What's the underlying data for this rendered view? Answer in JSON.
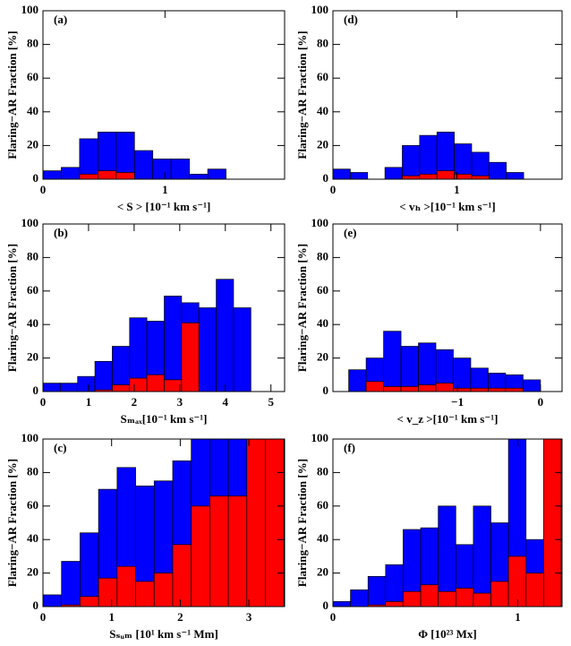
{
  "chart_data": [
    {
      "type": "histogram",
      "title": "(a)",
      "xlabel": "< S > [10⁻¹ km s⁻¹]",
      "ylabel": "Flaring−AR Fraction [%]",
      "bins": [
        0,
        0.15,
        0.3,
        0.45,
        0.6,
        0.75,
        0.9,
        1.05,
        1.2,
        1.35,
        1.5
      ],
      "series": [
        {
          "color": "#0000ff",
          "values": [
            5,
            7,
            24,
            28,
            28,
            17,
            12,
            12,
            3,
            6
          ]
        },
        {
          "color": "#ff0000",
          "values": [
            0,
            0,
            3,
            5,
            4,
            0,
            0,
            0,
            0,
            0
          ]
        }
      ],
      "xlim": [
        0,
        1.98
      ],
      "xticks": [
        0,
        1
      ],
      "ylim": [
        0,
        100
      ],
      "yticks": [
        0,
        20,
        40,
        60,
        80,
        100
      ]
    },
    {
      "type": "histogram",
      "title": "(b)",
      "xlabel": "Sₘₐₓ[10⁻¹ km s⁻¹]",
      "ylabel": "Flaring−AR Fraction [%]",
      "bins": [
        0,
        0.38,
        0.76,
        1.14,
        1.52,
        1.9,
        2.28,
        2.66,
        3.04,
        3.42,
        3.8,
        4.18,
        4.56
      ],
      "series": [
        {
          "color": "#0000ff",
          "values": [
            5,
            5,
            9,
            18,
            27,
            44,
            42,
            57,
            53,
            50,
            67,
            50
          ]
        },
        {
          "color": "#ff0000",
          "values": [
            0,
            0,
            0,
            1,
            4,
            8,
            10,
            7,
            41,
            0,
            0,
            0
          ]
        }
      ],
      "xlim": [
        0,
        5.3
      ],
      "xticks": [
        0,
        1,
        2,
        3,
        4,
        5
      ],
      "ylim": [
        0,
        100
      ],
      "yticks": [
        0,
        20,
        40,
        60,
        80,
        100
      ]
    },
    {
      "type": "histogram",
      "title": "(c)",
      "xlabel": "Sₛᵤₘ [10¹ km s⁻¹ Mm]",
      "ylabel": "Flaring−AR Fraction [%]",
      "bins": [
        0,
        0.27,
        0.54,
        0.81,
        1.08,
        1.35,
        1.62,
        1.89,
        2.16,
        2.43,
        2.7,
        2.97,
        3.24,
        3.51
      ],
      "series": [
        {
          "color": "#0000ff",
          "values": [
            7,
            27,
            44,
            70,
            83,
            72,
            75,
            87,
            100,
            100,
            100,
            100,
            100
          ]
        },
        {
          "color": "#ff0000",
          "values": [
            0,
            1,
            6,
            17,
            24,
            15,
            20,
            37,
            60,
            66,
            66,
            100,
            100
          ]
        }
      ],
      "xlim": [
        0,
        3.52
      ],
      "xticks": [
        0,
        1,
        2,
        3
      ],
      "ylim": [
        0,
        100
      ],
      "yticks": [
        0,
        20,
        40,
        60,
        80,
        100
      ]
    },
    {
      "type": "histogram",
      "title": "(d)",
      "xlabel": "< vₕ >[10⁻¹ km s⁻¹]",
      "ylabel": "Flaring−AR Fraction [%]",
      "bins": [
        0,
        0.14,
        0.28,
        0.42,
        0.56,
        0.7,
        0.84,
        0.98,
        1.12,
        1.26,
        1.4,
        1.54
      ],
      "series": [
        {
          "color": "#0000ff",
          "values": [
            6,
            4,
            0,
            7,
            20,
            26,
            28,
            21,
            16,
            10,
            4
          ]
        },
        {
          "color": "#ff0000",
          "values": [
            0,
            0,
            0,
            0,
            2,
            3,
            5,
            3,
            2,
            0,
            0
          ]
        }
      ],
      "xlim": [
        0,
        1.85
      ],
      "xticks": [
        0,
        1
      ],
      "ylim": [
        0,
        100
      ],
      "yticks": [
        0,
        20,
        40,
        60,
        80,
        100
      ]
    },
    {
      "type": "histogram",
      "title": "(e)",
      "xlabel": "< v_z >[10⁻¹ km s⁻¹]",
      "ylabel": "Flaring−AR Fraction [%]",
      "bins": [
        -2.31,
        -2.1,
        -1.89,
        -1.68,
        -1.47,
        -1.26,
        -1.05,
        -0.84,
        -0.63,
        -0.42,
        -0.21,
        0
      ],
      "series": [
        {
          "color": "#0000ff",
          "values": [
            13,
            20,
            36,
            27,
            29,
            25,
            20,
            14,
            11,
            10,
            7
          ]
        },
        {
          "color": "#ff0000",
          "values": [
            0,
            6,
            3,
            3,
            4,
            5,
            2,
            2,
            2,
            2,
            0
          ]
        }
      ],
      "xlim": [
        -2.5,
        0.26
      ],
      "xticks": [
        {
          "value": -1,
          "label": "−1"
        },
        0
      ],
      "ylim": [
        0,
        100
      ],
      "yticks": [
        0,
        20,
        40,
        60,
        80,
        100
      ]
    },
    {
      "type": "histogram",
      "title": "(f)",
      "xlabel": "Φ [10²³ Mx]",
      "ylabel": "Flaring−AR Fraction [%]",
      "bins": [
        0,
        0.095,
        0.19,
        0.285,
        0.38,
        0.475,
        0.57,
        0.665,
        0.76,
        0.855,
        0.95,
        1.045,
        1.14,
        1.235
      ],
      "series": [
        {
          "color": "#0000ff",
          "values": [
            3,
            10,
            18,
            25,
            46,
            47,
            60,
            37,
            60,
            50,
            100,
            40,
            100
          ]
        },
        {
          "color": "#ff0000",
          "values": [
            0,
            0,
            1,
            3,
            9,
            13,
            9,
            11,
            8,
            15,
            30,
            20,
            100
          ]
        }
      ],
      "xlim": [
        0,
        1.24
      ],
      "xticks": [
        0,
        1
      ],
      "ylim": [
        0,
        100
      ],
      "yticks": [
        0,
        20,
        40,
        60,
        80,
        100
      ]
    }
  ]
}
